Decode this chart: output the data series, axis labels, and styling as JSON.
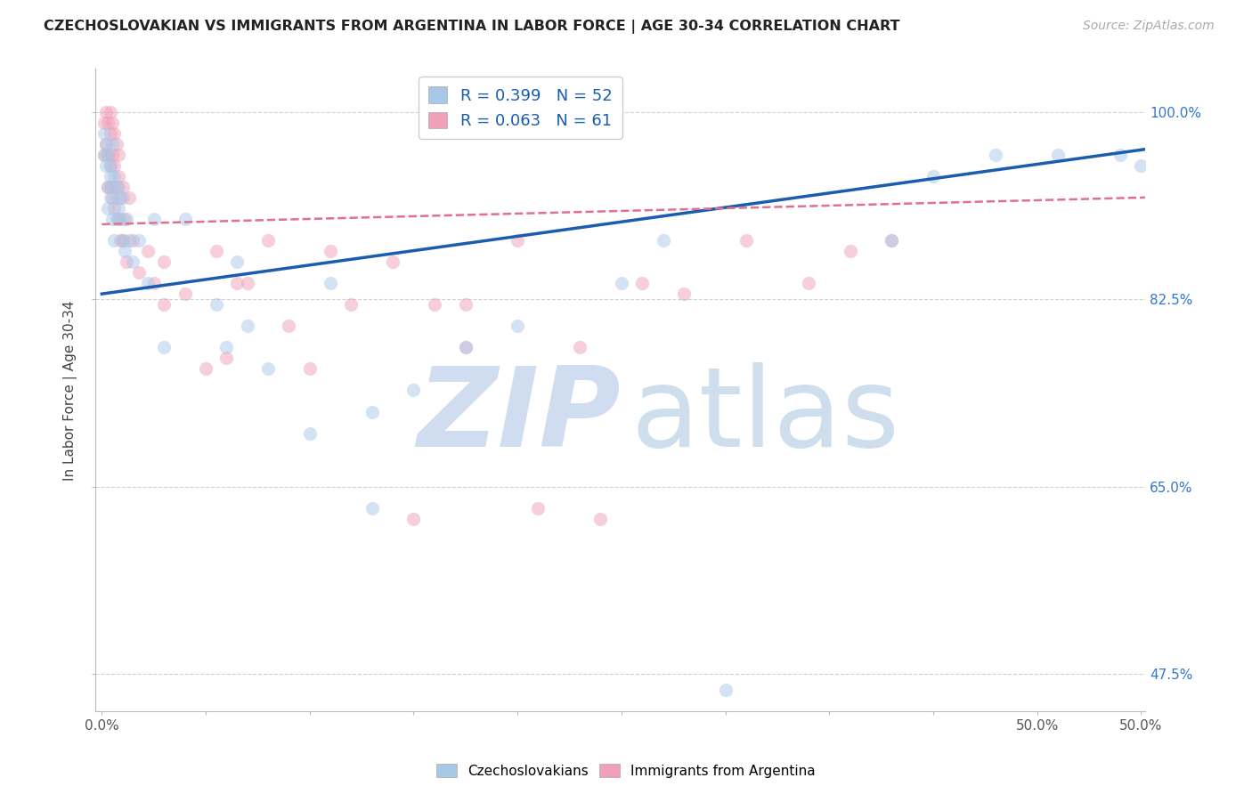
{
  "title": "CZECHOSLOVAKIAN VS IMMIGRANTS FROM ARGENTINA IN LABOR FORCE | AGE 30-34 CORRELATION CHART",
  "source_text": "Source: ZipAtlas.com",
  "ylabel": "In Labor Force | Age 30-34",
  "xlim": [
    -0.003,
    0.502
  ],
  "ylim": [
    0.44,
    1.04
  ],
  "xticks": [
    0.0,
    0.05,
    0.1,
    0.15,
    0.2,
    0.25,
    0.3,
    0.35,
    0.4,
    0.45,
    0.5
  ],
  "xtick_labels_show": {
    "0.0": "0.0%",
    "0.5": "50.0%"
  },
  "ytick_positions": [
    0.475,
    0.65,
    0.825,
    1.0
  ],
  "ytick_labels": [
    "47.5%",
    "65.0%",
    "82.5%",
    "100.0%"
  ],
  "legend_blue_label": "R = 0.399   N = 52",
  "legend_pink_label": "R = 0.063   N = 61",
  "blue_dot_color": "#a8c8e8",
  "pink_dot_color": "#f0a0b8",
  "blue_line_color": "#1a5cb0",
  "pink_line_color": "#e07090",
  "grid_color": "#cccccc",
  "dot_size": 120,
  "dot_alpha": 0.5,
  "blue_trend_x": [
    0.0,
    0.502
  ],
  "blue_trend_y": [
    0.83,
    0.965
  ],
  "pink_trend_x": [
    0.0,
    0.502
  ],
  "pink_trend_y": [
    0.895,
    0.92
  ],
  "blue_x": [
    0.001,
    0.001,
    0.002,
    0.002,
    0.003,
    0.003,
    0.003,
    0.004,
    0.004,
    0.004,
    0.005,
    0.005,
    0.005,
    0.006,
    0.006,
    0.007,
    0.007,
    0.008,
    0.008,
    0.009,
    0.01,
    0.01,
    0.011,
    0.012,
    0.013,
    0.015,
    0.018,
    0.022,
    0.025,
    0.03,
    0.04,
    0.055,
    0.06,
    0.065,
    0.07,
    0.08,
    0.1,
    0.11,
    0.13,
    0.15,
    0.175,
    0.2,
    0.25,
    0.27,
    0.3,
    0.38,
    0.4,
    0.43,
    0.46,
    0.49,
    0.5,
    0.13
  ],
  "blue_y": [
    0.98,
    0.96,
    0.97,
    0.95,
    0.93,
    0.96,
    0.91,
    0.94,
    0.92,
    0.95,
    0.93,
    0.9,
    0.97,
    0.88,
    0.94,
    0.92,
    0.9,
    0.91,
    0.93,
    0.9,
    0.88,
    0.92,
    0.87,
    0.9,
    0.88,
    0.86,
    0.88,
    0.84,
    0.9,
    0.78,
    0.9,
    0.82,
    0.78,
    0.86,
    0.8,
    0.76,
    0.7,
    0.84,
    0.72,
    0.74,
    0.78,
    0.8,
    0.84,
    0.88,
    0.46,
    0.88,
    0.94,
    0.96,
    0.96,
    0.96,
    0.95,
    0.63
  ],
  "pink_x": [
    0.001,
    0.001,
    0.002,
    0.002,
    0.003,
    0.003,
    0.003,
    0.004,
    0.004,
    0.004,
    0.004,
    0.005,
    0.005,
    0.005,
    0.006,
    0.006,
    0.006,
    0.007,
    0.007,
    0.008,
    0.008,
    0.008,
    0.009,
    0.009,
    0.01,
    0.01,
    0.011,
    0.012,
    0.013,
    0.015,
    0.018,
    0.022,
    0.025,
    0.03,
    0.04,
    0.05,
    0.055,
    0.065,
    0.08,
    0.09,
    0.11,
    0.14,
    0.16,
    0.175,
    0.2,
    0.23,
    0.26,
    0.28,
    0.31,
    0.34,
    0.36,
    0.38,
    0.03,
    0.06,
    0.07,
    0.1,
    0.12,
    0.15,
    0.175,
    0.21,
    0.24
  ],
  "pink_y": [
    0.96,
    0.99,
    0.97,
    1.0,
    0.93,
    0.96,
    0.99,
    0.95,
    0.98,
    0.93,
    1.0,
    0.96,
    0.92,
    0.99,
    0.95,
    0.91,
    0.98,
    0.93,
    0.97,
    0.94,
    0.9,
    0.96,
    0.92,
    0.88,
    0.93,
    0.88,
    0.9,
    0.86,
    0.92,
    0.88,
    0.85,
    0.87,
    0.84,
    0.86,
    0.83,
    0.76,
    0.87,
    0.84,
    0.88,
    0.8,
    0.87,
    0.86,
    0.82,
    0.78,
    0.88,
    0.78,
    0.84,
    0.83,
    0.88,
    0.84,
    0.87,
    0.88,
    0.82,
    0.77,
    0.84,
    0.76,
    0.82,
    0.62,
    0.82,
    0.63,
    0.62
  ]
}
